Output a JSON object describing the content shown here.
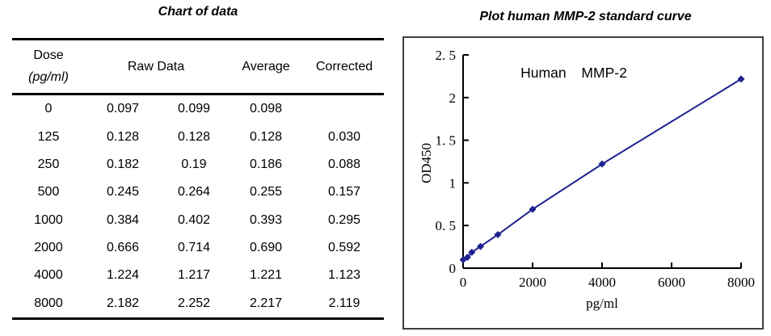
{
  "left_panel": {
    "title": "Chart of data",
    "table": {
      "headers": {
        "dose_line1": "Dose",
        "dose_line2": "(pg/ml)",
        "raw": "Raw Data",
        "average": "Average",
        "corrected": "Corrected"
      },
      "rows": [
        {
          "dose": "0",
          "raw1": "0.097",
          "raw2": "0.099",
          "average": "0.098",
          "corrected": ""
        },
        {
          "dose": "125",
          "raw1": "0.128",
          "raw2": "0.128",
          "average": "0.128",
          "corrected": "0.030"
        },
        {
          "dose": "250",
          "raw1": "0.182",
          "raw2": "0.19",
          "average": "0.186",
          "corrected": "0.088"
        },
        {
          "dose": "500",
          "raw1": "0.245",
          "raw2": "0.264",
          "average": "0.255",
          "corrected": "0.157"
        },
        {
          "dose": "1000",
          "raw1": "0.384",
          "raw2": "0.402",
          "average": "0.393",
          "corrected": "0.295"
        },
        {
          "dose": "2000",
          "raw1": "0.666",
          "raw2": "0.714",
          "average": "0.690",
          "corrected": "0.592"
        },
        {
          "dose": "4000",
          "raw1": "1.224",
          "raw2": "1.217",
          "average": "1.221",
          "corrected": "1.123"
        },
        {
          "dose": "8000",
          "raw1": "2.182",
          "raw2": "2.252",
          "average": "2.217",
          "corrected": "2.119"
        }
      ]
    }
  },
  "right_panel": {
    "title": "Plot human MMP-2 standard curve"
  },
  "chart_data": {
    "type": "line",
    "title": "Human MMP-2",
    "xlabel": "pg/ml",
    "ylabel": "OD450",
    "x": [
      0,
      125,
      250,
      500,
      1000,
      2000,
      4000,
      8000
    ],
    "y": [
      0.098,
      0.128,
      0.186,
      0.255,
      0.393,
      0.69,
      1.221,
      2.217
    ],
    "xticks": [
      0,
      2000,
      4000,
      6000,
      8000
    ],
    "xtick_labels": [
      "0",
      "2000",
      "4000",
      "6000",
      "8000"
    ],
    "yticks": [
      0,
      0.5,
      1,
      1.5,
      2,
      2.5
    ],
    "ytick_labels": [
      "0",
      "0. 5",
      "1",
      "1. 5",
      "2",
      "2. 5"
    ],
    "xlim": [
      0,
      8000
    ],
    "ylim": [
      0,
      2.5
    ],
    "grid": false,
    "legend_position": "none",
    "marker": "diamond",
    "line_color": "#1F228F",
    "axis_color": "#000000",
    "frame_color": "#3f3f3f"
  }
}
